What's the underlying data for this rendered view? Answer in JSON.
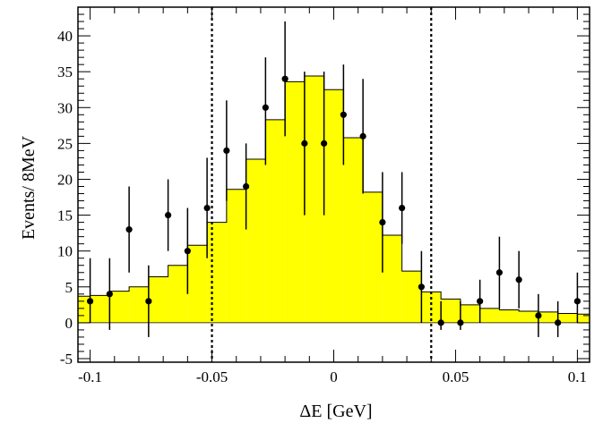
{
  "chart_data": {
    "type": "histogram",
    "xlabel": "ΔE [GeV]",
    "ylabel": "Events/ 8MeV",
    "xlim": [
      -0.105,
      0.105
    ],
    "ylim": [
      -5.5,
      44
    ],
    "x_ticks": [
      -0.1,
      -0.05,
      0,
      0.05,
      0.1
    ],
    "x_tick_labels": [
      "-0.1",
      "-0.05",
      "0",
      "0.05",
      "0.1"
    ],
    "y_ticks": [
      -5,
      0,
      5,
      10,
      15,
      20,
      25,
      30,
      35,
      40
    ],
    "y_tick_labels": [
      "-5",
      "0",
      "5",
      "10",
      "15",
      "20",
      "25",
      "30",
      "35",
      "40"
    ],
    "histogram": {
      "name": "",
      "color": "#ffff00",
      "bin_edges": [
        -0.108,
        -0.1,
        -0.092,
        -0.084,
        -0.076,
        -0.068,
        -0.06,
        -0.052,
        -0.044,
        -0.036,
        -0.028,
        -0.02,
        -0.012,
        -0.004,
        0.004,
        0.012,
        0.02,
        0.028,
        0.036,
        0.044,
        0.052,
        0.06,
        0.068,
        0.076,
        0.084,
        0.092,
        0.1,
        0.108
      ],
      "heights": [
        3.7,
        3.8,
        4.4,
        5.0,
        6.4,
        8.0,
        10.8,
        14.0,
        18.6,
        22.8,
        28.3,
        33.6,
        34.4,
        32.5,
        25.8,
        18.2,
        12.2,
        7.2,
        4.3,
        3.3,
        2.5,
        2.0,
        1.8,
        1.6,
        1.5,
        1.3,
        1.2
      ]
    },
    "points": {
      "name": "",
      "color": "#000000",
      "x": [
        -0.1,
        -0.092,
        -0.084,
        -0.076,
        -0.068,
        -0.06,
        -0.052,
        -0.044,
        -0.036,
        -0.028,
        -0.02,
        -0.012,
        -0.004,
        0.004,
        0.012,
        0.02,
        0.028,
        0.036,
        0.044,
        0.052,
        0.06,
        0.068,
        0.076,
        0.084,
        0.092,
        0.1
      ],
      "y": [
        3,
        4,
        13,
        3,
        15,
        10,
        16,
        24,
        19,
        30,
        34,
        25,
        25,
        29,
        26,
        14,
        16,
        5,
        0,
        0,
        3,
        7,
        6,
        1,
        0,
        3
      ],
      "err_low": [
        3,
        5,
        6,
        5,
        5,
        6,
        7,
        7,
        6,
        8,
        8,
        10,
        10,
        7,
        8,
        7,
        5,
        5,
        1,
        1,
        3,
        5,
        4,
        3,
        2,
        3
      ],
      "err_high": [
        6,
        5,
        6,
        5,
        5,
        6,
        7,
        7,
        6,
        7,
        8,
        10,
        10,
        7,
        8,
        7,
        5,
        5,
        3,
        3,
        3,
        5,
        4,
        3,
        3,
        4
      ]
    },
    "cut_lines": {
      "style": "dotted",
      "x": [
        -0.05,
        0.04
      ]
    },
    "grid": false,
    "legend": "none"
  }
}
